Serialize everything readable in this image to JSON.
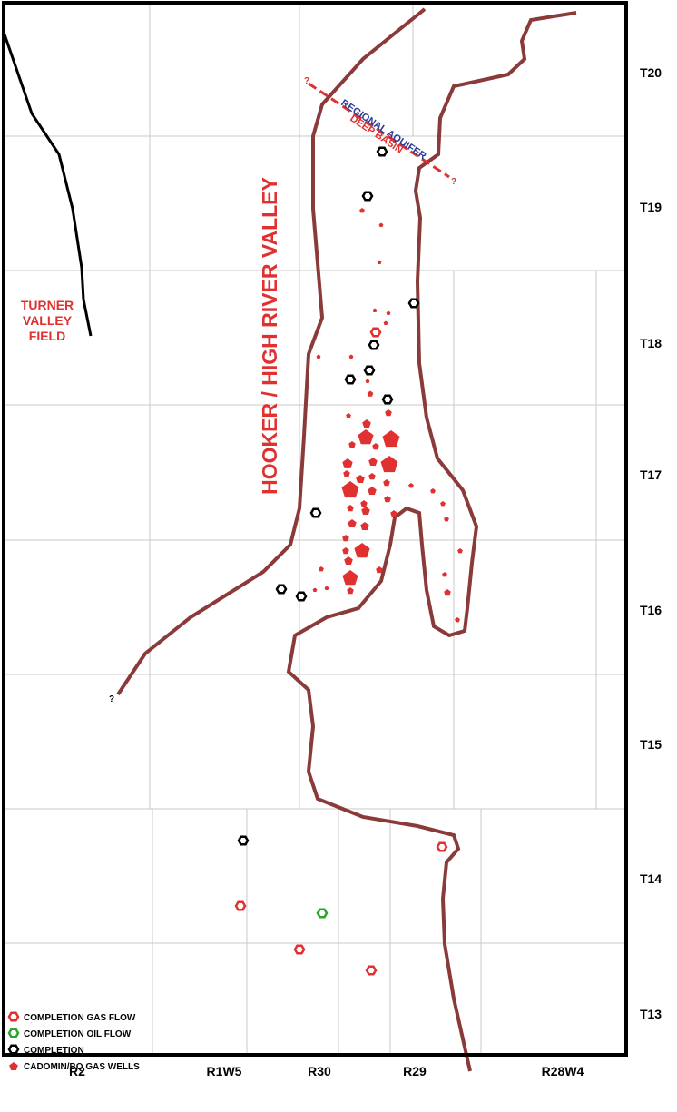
{
  "map": {
    "townships": [
      "T20",
      "T19",
      "T18",
      "T17",
      "T16",
      "T15",
      "T14",
      "T13"
    ],
    "ranges": [
      "R2",
      "R1W5",
      "R30",
      "R29",
      "R28W4"
    ],
    "field_label": [
      "TURNER",
      "VALLEY",
      "FIELD"
    ],
    "valley_label": "HOOKER / HIGH RIVER VALLEY",
    "aquifer_label": "REGIONAL AQUIFER",
    "basin_label": "DEEP BASIN",
    "uncertainty_marks": [
      "?",
      "?",
      "?"
    ],
    "legend": [
      "COMPLETION GAS FLOW",
      "COMPLETION OIL FLOW",
      "COMPLETION",
      "CADOMIN/BQ GAS WELLS"
    ]
  }
}
